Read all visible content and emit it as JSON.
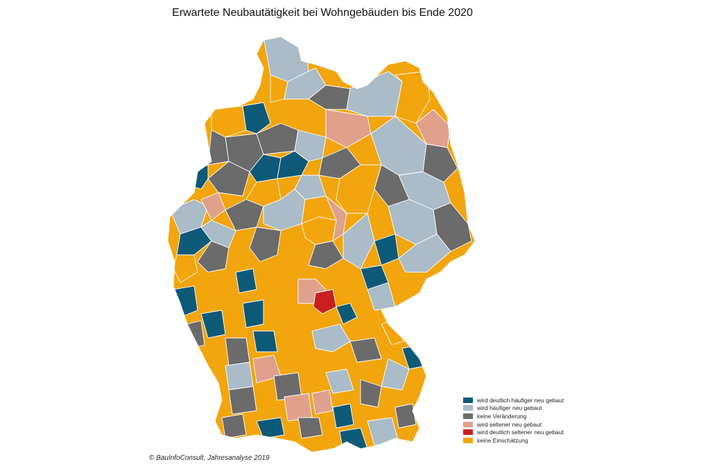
{
  "title": "Erwartete Neubautätigkeit bei Wohngebäuden bis Ende 2020",
  "source": "© BauInfoConsult, Jahresanalyse 2019",
  "colors": {
    "dark_teal": "#0d5a78",
    "light_blue": "#a9bcc8",
    "gray": "#6b6b6b",
    "salmon": "#e0a08c",
    "red": "#c8201e",
    "orange": "#f2a50c",
    "border": "#ffffff"
  },
  "legend": [
    {
      "label": "wird deutlich häufiger neu gebaut",
      "color": "#0d5a78"
    },
    {
      "label": "wird häufiger neu gebaut",
      "color": "#a9bcc8"
    },
    {
      "label": "keine Veränderung",
      "color": "#6b6b6b"
    },
    {
      "label": "wird seltener neu gebaut",
      "color": "#e0a08c"
    },
    {
      "label": "wird deutlich seltener neu gebaut",
      "color": "#c8201e"
    },
    {
      "label": "keine Einschätzung",
      "color": "#f2a50c"
    }
  ]
}
